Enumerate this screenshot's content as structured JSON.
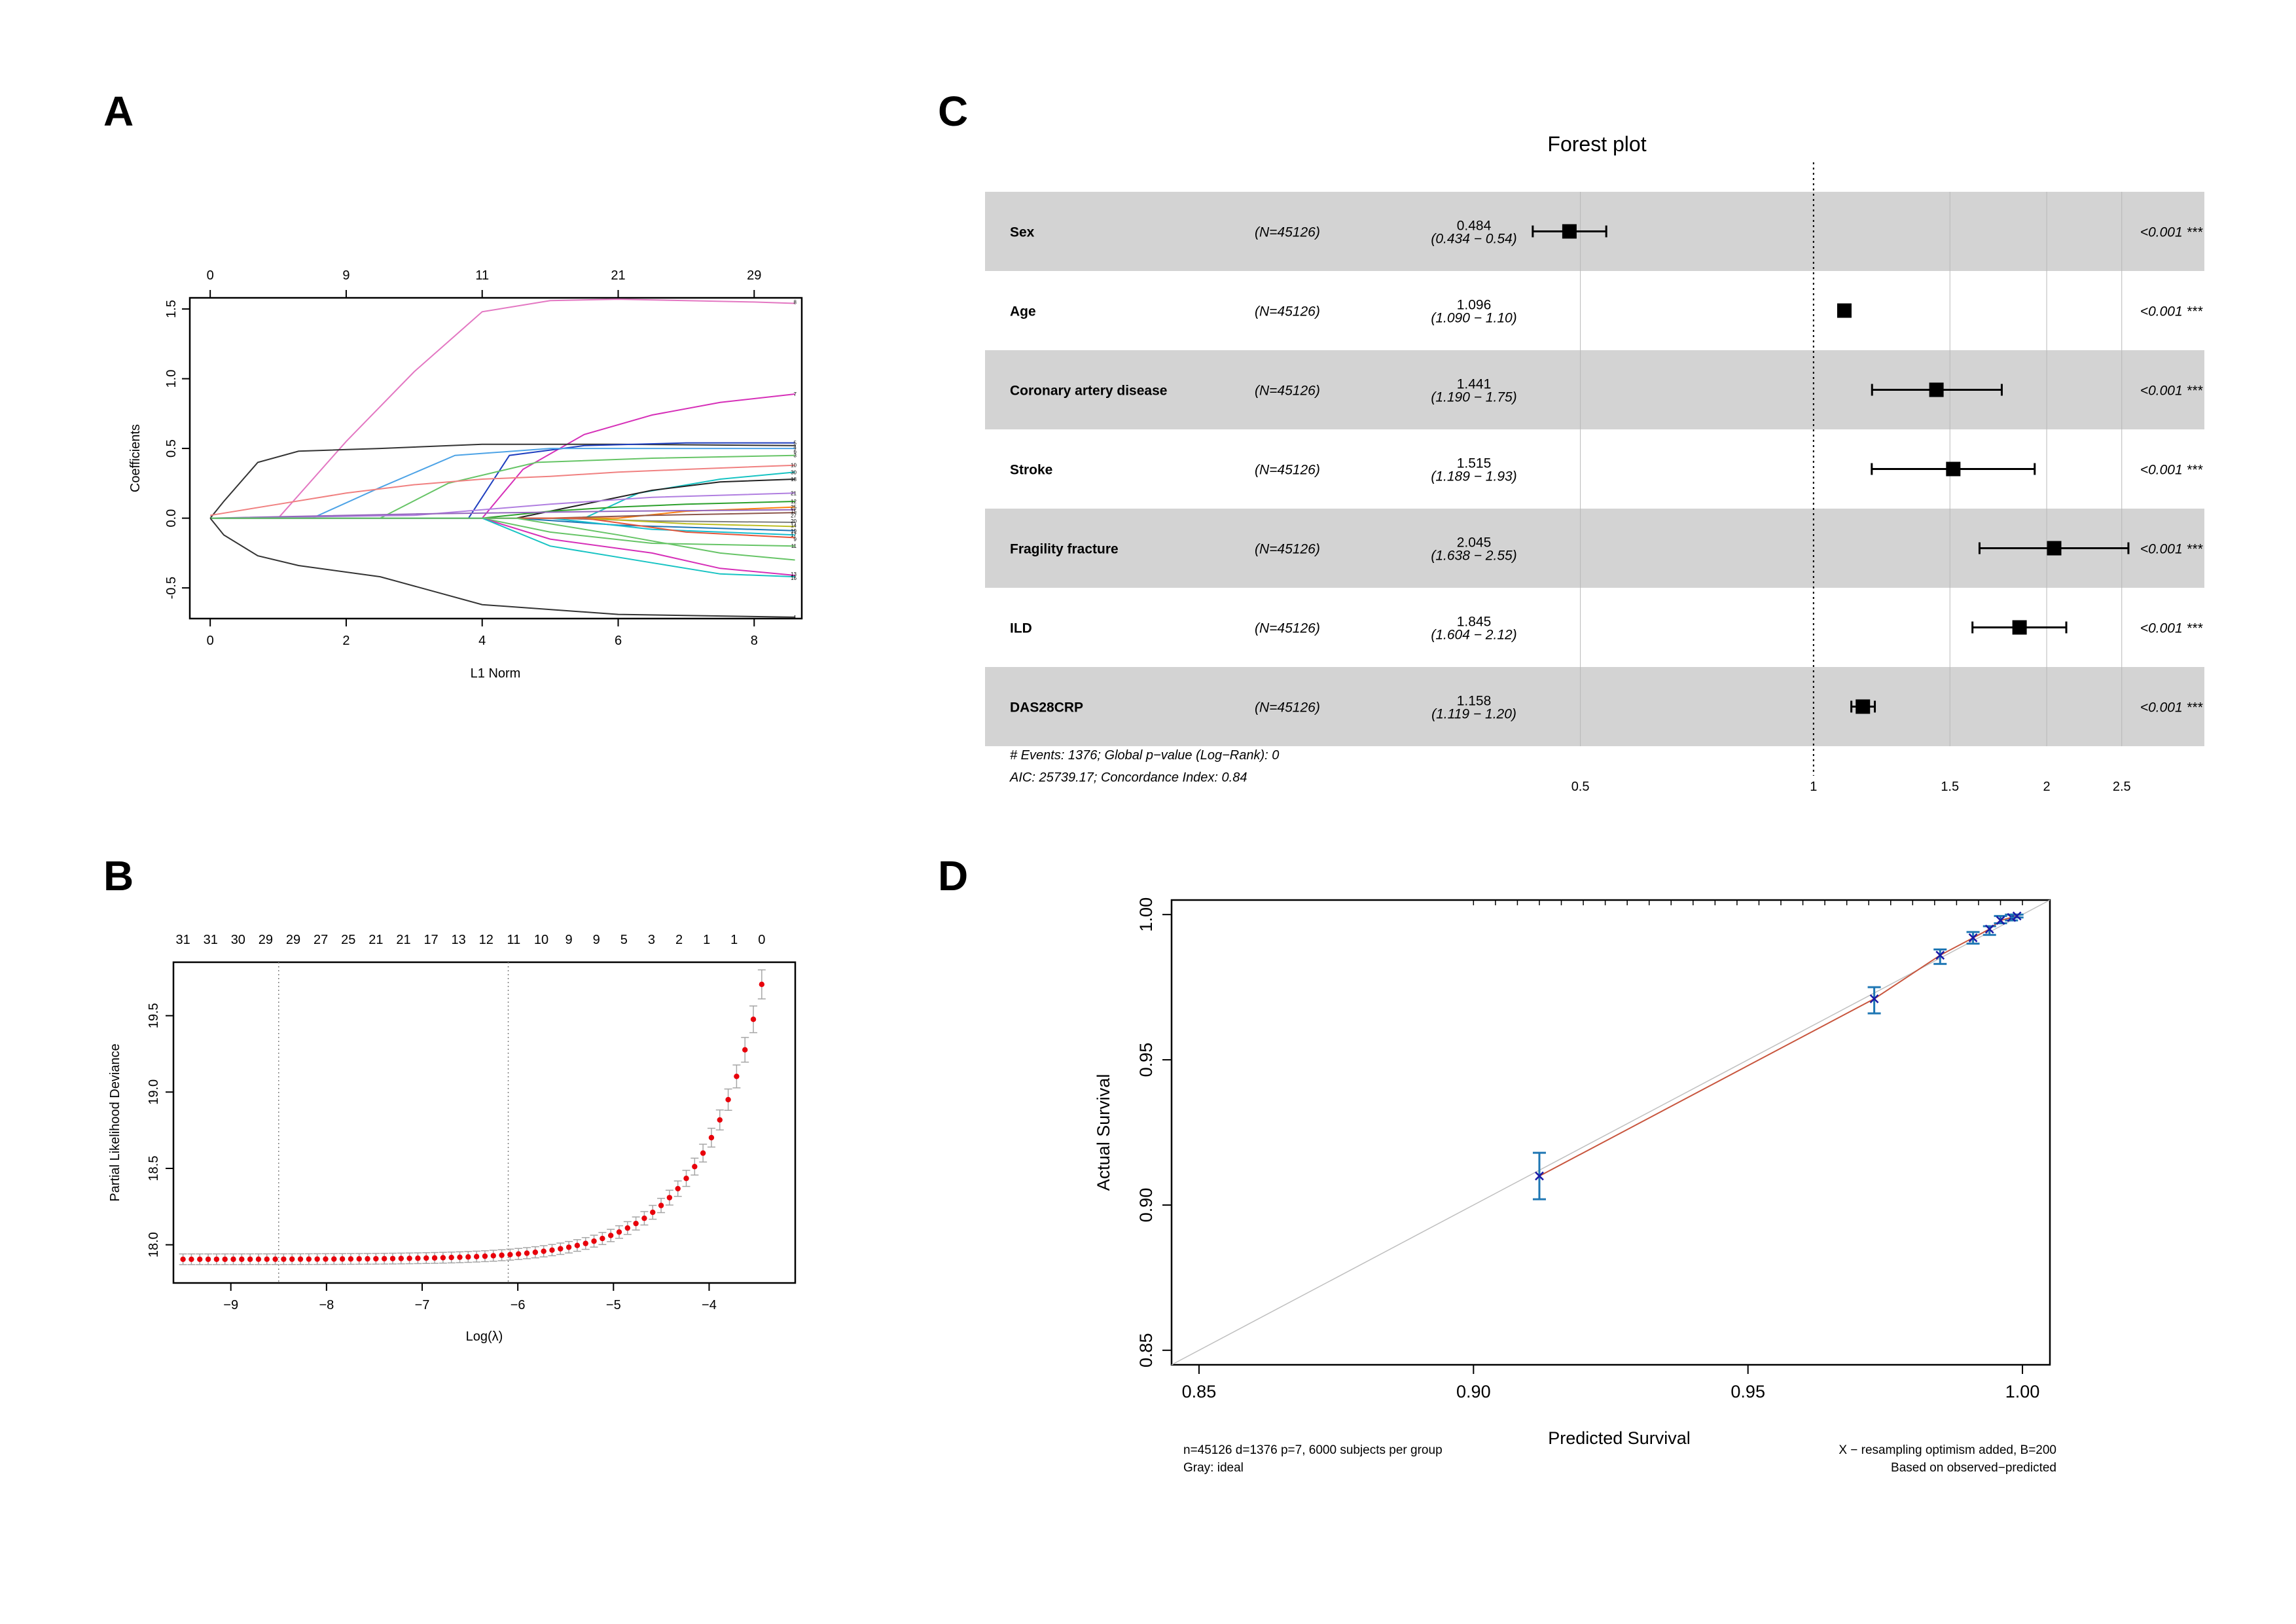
{
  "colors": {
    "background": "#ffffff",
    "forest_band": "#d3d3d3",
    "cv_point": "#e8000b",
    "cv_errorbar": "#a6a6a6",
    "calib_line": "#c8553d",
    "calib_ideal": "#bfbfbf",
    "calib_errorbar": "#1f77b4",
    "calib_point": "#1a1aa6"
  },
  "panels": {
    "a": "A",
    "b": "B",
    "c": "C",
    "d": "D"
  },
  "chart_data": [
    {
      "id": "A",
      "type": "line",
      "title": "",
      "xlabel": "L1 Norm",
      "ylabel": "Coefficients",
      "xlim": [
        -0.3,
        8.7
      ],
      "ylim": [
        -0.72,
        1.58
      ],
      "x_ticks": [
        0,
        2,
        4,
        6,
        8
      ],
      "y_ticks": [
        -0.5,
        0.0,
        0.5,
        1.0,
        1.5
      ],
      "y_tick_labels": [
        "-0.5",
        "0.0",
        "0.5",
        "1.0",
        "1.5"
      ],
      "top_axis_positions": [
        0,
        2,
        4,
        6,
        8
      ],
      "top_axis_labels": [
        "0",
        "9",
        "11",
        "21",
        "29"
      ],
      "series": [
        {
          "name": "8",
          "color": "#e377c2",
          "points": [
            [
              0,
              0
            ],
            [
              1,
              0
            ],
            [
              2,
              0.55
            ],
            [
              3,
              1.05
            ],
            [
              4,
              1.48
            ],
            [
              5,
              1.56
            ],
            [
              6,
              1.57
            ],
            [
              7,
              1.56
            ],
            [
              8,
              1.55
            ],
            [
              8.6,
              1.54
            ]
          ]
        },
        {
          "name": "7",
          "color": "#d62fb8",
          "points": [
            [
              0,
              0
            ],
            [
              4,
              0
            ],
            [
              4.6,
              0.35
            ],
            [
              5.5,
              0.6
            ],
            [
              6.5,
              0.74
            ],
            [
              7.5,
              0.83
            ],
            [
              8.6,
              0.89
            ]
          ]
        },
        {
          "name": "5",
          "color": "#333333",
          "points": [
            [
              0,
              0
            ],
            [
              0.2,
              0.12
            ],
            [
              0.7,
              0.4
            ],
            [
              1.3,
              0.48
            ],
            [
              2.5,
              0.5
            ],
            [
              4,
              0.53
            ],
            [
              6,
              0.53
            ],
            [
              8.6,
              0.52
            ]
          ]
        },
        {
          "name": "4",
          "color": "#1f3fbf",
          "points": [
            [
              0,
              0
            ],
            [
              3.8,
              0
            ],
            [
              4.4,
              0.45
            ],
            [
              5.5,
              0.52
            ],
            [
              7,
              0.54
            ],
            [
              8.6,
              0.54
            ]
          ]
        },
        {
          "name": "6",
          "color": "#4da3e6",
          "points": [
            [
              0,
              0
            ],
            [
              1.5,
              0
            ],
            [
              2.5,
              0.22
            ],
            [
              3.6,
              0.45
            ],
            [
              5,
              0.5
            ],
            [
              6.5,
              0.5
            ],
            [
              8.6,
              0.5
            ]
          ]
        },
        {
          "name": "3",
          "color": "#66c466",
          "points": [
            [
              0,
              0
            ],
            [
              2.5,
              0
            ],
            [
              3.5,
              0.25
            ],
            [
              4.8,
              0.4
            ],
            [
              6.5,
              0.43
            ],
            [
              8.6,
              0.45
            ]
          ]
        },
        {
          "name": "10",
          "color": "#f08080",
          "points": [
            [
              0,
              0.02
            ],
            [
              1,
              0.1
            ],
            [
              2,
              0.18
            ],
            [
              3,
              0.24
            ],
            [
              4,
              0.28
            ],
            [
              5,
              0.3
            ],
            [
              6,
              0.33
            ],
            [
              7,
              0.35
            ],
            [
              8.6,
              0.38
            ]
          ]
        },
        {
          "name": "30",
          "color": "#17c3c3",
          "points": [
            [
              0,
              0
            ],
            [
              5.5,
              0
            ],
            [
              6.3,
              0.18
            ],
            [
              7.5,
              0.28
            ],
            [
              8.6,
              0.33
            ]
          ]
        },
        {
          "name": "18",
          "color": "#222222",
          "points": [
            [
              0,
              0
            ],
            [
              4.5,
              0
            ],
            [
              5.5,
              0.1
            ],
            [
              6.5,
              0.2
            ],
            [
              7.5,
              0.26
            ],
            [
              8.6,
              0.28
            ]
          ]
        },
        {
          "name": "21",
          "color": "#b07ee0",
          "points": [
            [
              0,
              0
            ],
            [
              3,
              0.02
            ],
            [
              5,
              0.1
            ],
            [
              6.5,
              0.15
            ],
            [
              8.6,
              0.18
            ]
          ]
        },
        {
          "name": "12",
          "color": "#2ca02c",
          "points": [
            [
              0,
              0
            ],
            [
              4,
              0
            ],
            [
              5,
              0.05
            ],
            [
              6,
              0.08
            ],
            [
              7,
              0.1
            ],
            [
              8.6,
              0.12
            ]
          ]
        },
        {
          "name": "25",
          "color": "#ff7f0e",
          "points": [
            [
              0,
              0
            ],
            [
              6,
              0
            ],
            [
              7,
              0.05
            ],
            [
              8.6,
              0.08
            ]
          ]
        },
        {
          "name": "15",
          "color": "#9467bd",
          "points": [
            [
              0,
              0
            ],
            [
              3,
              0.03
            ],
            [
              6,
              0.05
            ],
            [
              8.6,
              0.06
            ]
          ]
        },
        {
          "name": "27",
          "color": "#8c564b",
          "points": [
            [
              0,
              0
            ],
            [
              5,
              0
            ],
            [
              6.5,
              0.02
            ],
            [
              8.6,
              0.04
            ]
          ]
        },
        {
          "name": "20",
          "color": "#7f7f7f",
          "points": [
            [
              0,
              0
            ],
            [
              5,
              0
            ],
            [
              6.5,
              -0.02
            ],
            [
              8.6,
              -0.03
            ]
          ]
        },
        {
          "name": "14",
          "color": "#bcbd22",
          "points": [
            [
              0,
              0
            ],
            [
              5.5,
              0
            ],
            [
              7,
              -0.04
            ],
            [
              8.6,
              -0.06
            ]
          ]
        },
        {
          "name": "19",
          "color": "#1f77b4",
          "points": [
            [
              0,
              0
            ],
            [
              4.5,
              0
            ],
            [
              6,
              -0.05
            ],
            [
              8.6,
              -0.09
            ]
          ]
        },
        {
          "name": "17",
          "color": "#17becf",
          "points": [
            [
              0,
              0
            ],
            [
              5,
              0
            ],
            [
              6.5,
              -0.08
            ],
            [
              8.6,
              -0.12
            ]
          ]
        },
        {
          "name": "9",
          "color": "#e6553a",
          "points": [
            [
              0,
              0
            ],
            [
              5.5,
              0
            ],
            [
              7,
              -0.1
            ],
            [
              8.6,
              -0.14
            ]
          ]
        },
        {
          "name": "11",
          "color": "#66c466",
          "points": [
            [
              0,
              0
            ],
            [
              4,
              0
            ],
            [
              5,
              -0.1
            ],
            [
              6.5,
              -0.18
            ],
            [
              8.6,
              -0.2
            ]
          ]
        },
        {
          "name": "13",
          "color": "#d62fb8",
          "points": [
            [
              0,
              0
            ],
            [
              4,
              0
            ],
            [
              5,
              -0.15
            ],
            [
              6.5,
              -0.25
            ],
            [
              7.5,
              -0.36
            ],
            [
              8.6,
              -0.41
            ]
          ]
        },
        {
          "name": "16",
          "color": "#17c3c3",
          "points": [
            [
              0,
              0
            ],
            [
              4,
              0
            ],
            [
              5,
              -0.2
            ],
            [
              6.5,
              -0.32
            ],
            [
              7.5,
              -0.4
            ],
            [
              8.6,
              -0.42
            ]
          ]
        },
        {
          "name": "2",
          "color": "#66c466",
          "points": [
            [
              0,
              0
            ],
            [
              4.5,
              0
            ],
            [
              6,
              -0.12
            ],
            [
              7.5,
              -0.25
            ],
            [
              8.6,
              -0.3
            ]
          ]
        },
        {
          "name": "1",
          "color": "#333333",
          "points": [
            [
              0,
              0
            ],
            [
              0.2,
              -0.12
            ],
            [
              0.7,
              -0.27
            ],
            [
              1.3,
              -0.34
            ],
            [
              2.5,
              -0.42
            ],
            [
              4,
              -0.62
            ],
            [
              6,
              -0.69
            ],
            [
              8.6,
              -0.71
            ]
          ]
        }
      ],
      "right_labels": [
        {
          "text": "8",
          "y": 1.55
        },
        {
          "text": "7",
          "y": 0.89
        },
        {
          "text": "5",
          "y": 0.54
        },
        {
          "text": "4",
          "y": 0.51
        },
        {
          "text": "6",
          "y": 0.48
        },
        {
          "text": "3",
          "y": 0.45
        },
        {
          "text": "10",
          "y": 0.38
        },
        {
          "text": "30",
          "y": 0.33
        },
        {
          "text": "18",
          "y": 0.28
        },
        {
          "text": "21",
          "y": 0.18
        },
        {
          "text": "12",
          "y": 0.12
        },
        {
          "text": "25",
          "y": 0.08
        },
        {
          "text": "15",
          "y": 0.05
        },
        {
          "text": "27",
          "y": 0.02
        },
        {
          "text": "20",
          "y": -0.02
        },
        {
          "text": "14",
          "y": -0.05
        },
        {
          "text": "19",
          "y": -0.09
        },
        {
          "text": "17",
          "y": -0.12
        },
        {
          "text": "9",
          "y": -0.15
        },
        {
          "text": "11",
          "y": -0.2
        },
        {
          "text": "13",
          "y": -0.4
        },
        {
          "text": "16",
          "y": -0.43
        },
        {
          "text": "1",
          "y": -0.71
        }
      ]
    },
    {
      "id": "B",
      "type": "scatter",
      "title": "",
      "xlabel": "Log(λ)",
      "ylabel": "Partial Likelihood Deviance",
      "xlim": [
        -9.6,
        -3.1
      ],
      "ylim": [
        17.75,
        19.85
      ],
      "x_ticks": [
        -9,
        -8,
        -7,
        -6,
        -5,
        -4
      ],
      "x_tick_labels": [
        "−9",
        "−8",
        "−7",
        "−6",
        "−5",
        "−4"
      ],
      "y_ticks": [
        18.0,
        18.5,
        19.0,
        19.5
      ],
      "y_tick_labels": [
        "18.0",
        "18.5",
        "19.0",
        "19.5"
      ],
      "vlines": [
        -8.5,
        -6.1
      ],
      "top_axis_labels": [
        "31",
        "31",
        "30",
        "29",
        "29",
        "27",
        "25",
        "21",
        "21",
        "17",
        "13",
        "12",
        "11",
        "10",
        "9",
        "9",
        "5",
        "3",
        "2",
        "1",
        "1",
        "0"
      ],
      "top_axis_range": [
        -9.5,
        -3.45
      ],
      "cv_curve": {
        "x_start": -9.5,
        "x_end": -3.45,
        "n": 70,
        "base": 17.905,
        "amp": 1.8,
        "rate": 1.55,
        "err_base": 0.035,
        "err_scale": 0.06
      }
    },
    {
      "id": "C",
      "type": "forest",
      "title": "Forest plot",
      "x_scale": "log",
      "xlim": [
        0.42,
        2.8
      ],
      "x_ticks": [
        0.5,
        1,
        1.5,
        2,
        2.5
      ],
      "x_tick_labels": [
        "0.5",
        "1",
        "1.5",
        "2",
        "2.5"
      ],
      "reference": 1,
      "rows": [
        {
          "variable": "Sex",
          "n": "(N=45126)",
          "hr": "0.484",
          "ci": "(0.434 − 0.54)",
          "p": "<0.001 ***",
          "est": 0.484,
          "lo": 0.434,
          "hi": 0.54
        },
        {
          "variable": "Age",
          "n": "(N=45126)",
          "hr": "1.096",
          "ci": "(1.090 − 1.10)",
          "p": "<0.001 ***",
          "est": 1.096,
          "lo": 1.09,
          "hi": 1.1
        },
        {
          "variable": "Coronary artery disease",
          "n": "(N=45126)",
          "hr": "1.441",
          "ci": "(1.190 − 1.75)",
          "p": "<0.001 ***",
          "est": 1.441,
          "lo": 1.19,
          "hi": 1.75
        },
        {
          "variable": "Stroke",
          "n": "(N=45126)",
          "hr": "1.515",
          "ci": "(1.189 − 1.93)",
          "p": "<0.001 ***",
          "est": 1.515,
          "lo": 1.189,
          "hi": 1.93
        },
        {
          "variable": "Fragility fracture",
          "n": "(N=45126)",
          "hr": "2.045",
          "ci": "(1.638 − 2.55)",
          "p": "<0.001 ***",
          "est": 2.045,
          "lo": 1.638,
          "hi": 2.55
        },
        {
          "variable": "ILD",
          "n": "(N=45126)",
          "hr": "1.845",
          "ci": "(1.604 − 2.12)",
          "p": "<0.001 ***",
          "est": 1.845,
          "lo": 1.604,
          "hi": 2.12
        },
        {
          "variable": "DAS28CRP",
          "n": "(N=45126)",
          "hr": "1.158",
          "ci": "(1.119 − 1.20)",
          "p": "<0.001 ***",
          "est": 1.158,
          "lo": 1.119,
          "hi": 1.2
        }
      ],
      "footnote_1": "# Events: 1376; Global p−value (Log−Rank): 0",
      "footnote_2": "AIC: 25739.17; Concordance Index: 0.84"
    },
    {
      "id": "D",
      "type": "scatter",
      "title": "",
      "xlabel": "Predicted Survival",
      "ylabel": "Actual Survival",
      "xlim": [
        0.845,
        1.005
      ],
      "ylim": [
        0.845,
        1.005
      ],
      "x_ticks": [
        0.85,
        0.9,
        0.95,
        1.0
      ],
      "x_tick_labels": [
        "0.85",
        "0.90",
        "0.95",
        "1.00"
      ],
      "y_ticks": [
        0.85,
        0.9,
        0.95,
        1.0
      ],
      "y_tick_labels": [
        "0.85",
        "0.90",
        "0.95",
        "1.00"
      ],
      "ideal_line": [
        [
          0.845,
          0.845
        ],
        [
          1.005,
          1.005
        ]
      ],
      "points": [
        {
          "x": 0.912,
          "y": 0.91,
          "lo": 0.902,
          "hi": 0.918
        },
        {
          "x": 0.973,
          "y": 0.971,
          "lo": 0.966,
          "hi": 0.975
        },
        {
          "x": 0.985,
          "y": 0.986,
          "lo": 0.983,
          "hi": 0.988
        },
        {
          "x": 0.991,
          "y": 0.992,
          "lo": 0.99,
          "hi": 0.994
        },
        {
          "x": 0.994,
          "y": 0.995,
          "lo": 0.993,
          "hi": 0.996
        },
        {
          "x": 0.996,
          "y": 0.998,
          "lo": 0.997,
          "hi": 0.9995
        },
        {
          "x": 0.998,
          "y": 0.999,
          "lo": 0.998,
          "hi": 1.0
        },
        {
          "x": 0.999,
          "y": 0.9995,
          "lo": 0.999,
          "hi": 1.0
        }
      ],
      "note_left_1": "n=45126 d=1376 p=7, 6000 subjects per group",
      "note_left_2": "Gray: ideal",
      "note_right_1": "X − resampling optimism added, B=200",
      "note_right_2": "Based on observed−predicted"
    }
  ]
}
